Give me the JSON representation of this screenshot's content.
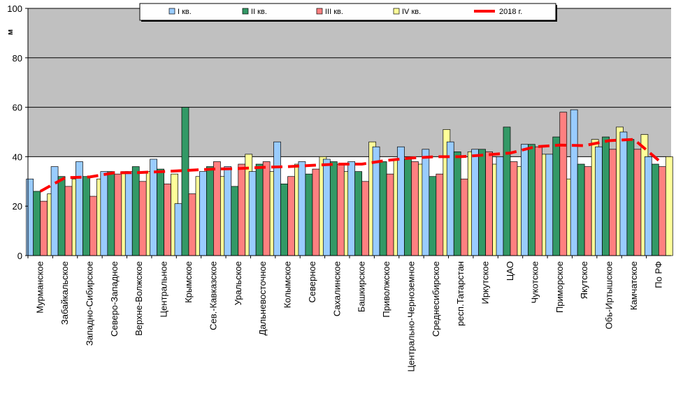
{
  "chart_data": {
    "type": "bar",
    "ylabel": "м",
    "ylim": [
      0,
      100
    ],
    "yticks": [
      0,
      20,
      40,
      60,
      80,
      100
    ],
    "grid": true,
    "legend_position": "top",
    "categories": [
      "Мурманское",
      "Забайкальское",
      "Западно-Сибирское",
      "Северо-Западное",
      "Верхне-Волжское",
      "Центральное",
      "Крымское",
      "Сев.-Кавказское",
      "Уральское",
      "Дальневосточное",
      "Колымское",
      "Северное",
      "Сахалинское",
      "Башкирское",
      "Приволжское",
      "Центрально-Черноземное",
      "Среднесибирское",
      "респ.Татарстан",
      "Иркутское",
      "ЦАО",
      "Чукотское",
      "Приморское",
      "Якутское",
      "Обь-Иртышское",
      "Камчатское",
      "По РФ"
    ],
    "series": [
      {
        "name": "I кв.",
        "color": "#99CCFF",
        "values": [
          31,
          36,
          38,
          34,
          34,
          39,
          21,
          34,
          36,
          34,
          46,
          38,
          39,
          38,
          44,
          44,
          43,
          46,
          43,
          40,
          45,
          41,
          59,
          44,
          50,
          40
        ]
      },
      {
        "name": "II кв.",
        "color": "#339966",
        "values": [
          26,
          32,
          32,
          34,
          36,
          35,
          60,
          36,
          28,
          37,
          29,
          33,
          38,
          34,
          38,
          39,
          32,
          42,
          43,
          52,
          45,
          48,
          37,
          48,
          47,
          37
        ]
      },
      {
        "name": "III кв.",
        "color": "#FF8080",
        "values": [
          22,
          28,
          24,
          33,
          30,
          29,
          25,
          38,
          37,
          38,
          32,
          35,
          37,
          30,
          33,
          38,
          33,
          31,
          42,
          38,
          44,
          58,
          36,
          43,
          43,
          36
        ]
      },
      {
        "name": "IV кв.",
        "color": "#FFFF99",
        "values": [
          25,
          31,
          31,
          34,
          34,
          33,
          32,
          32,
          41,
          34,
          37,
          40,
          34,
          46,
          39,
          37,
          51,
          42,
          37,
          36,
          41,
          31,
          47,
          52,
          49,
          40
        ]
      }
    ],
    "line_series": {
      "name": "2018 г.",
      "color": "#FF0000",
      "values": [
        26,
        31.5,
        31.8,
        33.5,
        33.6,
        34,
        34.5,
        35,
        35.2,
        35.7,
        36,
        36.5,
        37,
        37,
        38.5,
        39.5,
        40,
        40,
        40.7,
        41.5,
        44,
        44.7,
        44.5,
        46.5,
        47,
        38.5
      ]
    }
  }
}
